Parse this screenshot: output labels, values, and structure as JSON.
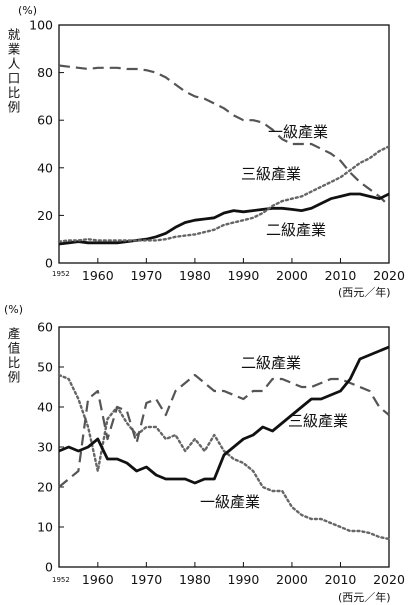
{
  "chart_data": [
    {
      "type": "line",
      "ylabel": "就業人口比例",
      "yunit": "(%)",
      "xunit": "(西元／年)",
      "x_start_label": "1952",
      "ylim": [
        0,
        100
      ],
      "xlim": [
        1952,
        2020
      ],
      "yticks": [
        0,
        20,
        40,
        60,
        80,
        100
      ],
      "xticks": [
        1960,
        1970,
        1980,
        1990,
        2000,
        2010,
        2020
      ],
      "grid": false,
      "series": [
        {
          "name": "一級產業",
          "line_style": "dashed",
          "x": [
            1952,
            1954,
            1956,
            1958,
            1960,
            1962,
            1964,
            1966,
            1968,
            1970,
            1972,
            1974,
            1976,
            1978,
            1980,
            1982,
            1984,
            1986,
            1988,
            1990,
            1992,
            1994,
            1996,
            1998,
            2000,
            2002,
            2004,
            2006,
            2008,
            2010,
            2012,
            2014,
            2016,
            2018,
            2020
          ],
          "y": [
            83,
            82.5,
            82,
            81.5,
            82,
            82,
            82,
            81.5,
            81.5,
            81,
            80,
            78,
            75,
            72,
            70,
            69,
            67,
            65,
            62,
            60,
            60,
            59,
            56,
            52,
            50,
            50,
            50,
            48,
            46,
            43,
            38,
            34,
            31,
            28,
            24
          ]
        },
        {
          "name": "二級產業",
          "line_style": "solid",
          "x": [
            1952,
            1954,
            1956,
            1958,
            1960,
            1962,
            1964,
            1966,
            1968,
            1970,
            1972,
            1974,
            1976,
            1978,
            1980,
            1982,
            1984,
            1986,
            1988,
            1990,
            1992,
            1994,
            1996,
            1998,
            2000,
            2002,
            2004,
            2006,
            2008,
            2010,
            2012,
            2014,
            2016,
            2018,
            2020
          ],
          "y": [
            8,
            8.5,
            9,
            8.5,
            8.5,
            8.5,
            8.5,
            9,
            9.5,
            10,
            11,
            12.5,
            15,
            17,
            18,
            18.5,
            19,
            21,
            22,
            21.5,
            22,
            22.5,
            23,
            23,
            22.5,
            22,
            23,
            25,
            27,
            28,
            29,
            29,
            28,
            27,
            29
          ]
        },
        {
          "name": "三級產業",
          "line_style": "dotted",
          "x": [
            1952,
            1954,
            1956,
            1958,
            1960,
            1962,
            1964,
            1966,
            1968,
            1970,
            1972,
            1974,
            1976,
            1978,
            1980,
            1982,
            1984,
            1986,
            1988,
            1990,
            1992,
            1994,
            1996,
            1998,
            2000,
            2002,
            2004,
            2006,
            2008,
            2010,
            2012,
            2014,
            2016,
            2018,
            2020
          ],
          "y": [
            9,
            9.5,
            9.5,
            10,
            9.5,
            9.5,
            9.5,
            9.5,
            9.5,
            9.5,
            9.5,
            10,
            11,
            11.5,
            12,
            13,
            14,
            16,
            17,
            18,
            19,
            21,
            24,
            26,
            27,
            28,
            30,
            32,
            34,
            36,
            39,
            42,
            44,
            47,
            49
          ]
        }
      ]
    },
    {
      "type": "line",
      "ylabel": "產值比例",
      "yunit": "(%)",
      "xunit": "(西元／年)",
      "x_start_label": "1952",
      "ylim": [
        0,
        60
      ],
      "xlim": [
        1952,
        2020
      ],
      "yticks": [
        0,
        10,
        20,
        30,
        40,
        50,
        60
      ],
      "xticks": [
        1960,
        1970,
        1980,
        1990,
        2000,
        2010,
        2020
      ],
      "grid": false,
      "series": [
        {
          "name": "一級產業",
          "line_style": "dotted",
          "x": [
            1952,
            1954,
            1956,
            1958,
            1960,
            1962,
            1964,
            1966,
            1968,
            1970,
            1972,
            1974,
            1976,
            1978,
            1980,
            1982,
            1984,
            1986,
            1988,
            1990,
            1992,
            1994,
            1996,
            1998,
            2000,
            2002,
            2004,
            2006,
            2008,
            2010,
            2012,
            2014,
            2016,
            2018,
            2020
          ],
          "y": [
            48,
            47,
            42,
            35,
            24,
            37,
            40,
            36,
            33,
            35,
            35,
            32,
            33,
            29,
            32,
            29,
            33,
            29,
            27,
            26,
            24,
            20,
            19,
            19,
            15,
            13,
            12,
            12,
            11,
            10,
            9,
            9,
            8.5,
            7.5,
            7
          ]
        },
        {
          "name": "二級產業",
          "line_style": "dashed",
          "x": [
            1952,
            1954,
            1956,
            1958,
            1960,
            1962,
            1964,
            1966,
            1968,
            1970,
            1972,
            1974,
            1976,
            1978,
            1980,
            1982,
            1984,
            1986,
            1988,
            1990,
            1992,
            1994,
            1996,
            1998,
            2000,
            2002,
            2004,
            2006,
            2008,
            2010,
            2012,
            2014,
            2016,
            2018,
            2020
          ],
          "y": [
            20,
            22,
            24,
            42,
            44,
            32,
            40,
            39,
            31,
            41,
            42,
            38,
            44,
            46,
            48,
            46,
            44,
            44,
            43,
            42,
            44,
            44,
            47,
            47,
            46,
            45,
            45,
            46,
            47,
            47,
            46,
            45,
            44,
            40,
            38
          ]
        },
        {
          "name": "三級產業",
          "line_style": "solid",
          "x": [
            1952,
            1954,
            1956,
            1958,
            1960,
            1962,
            1964,
            1966,
            1968,
            1970,
            1972,
            1974,
            1976,
            1978,
            1980,
            1982,
            1984,
            1986,
            1988,
            1990,
            1992,
            1994,
            1996,
            1998,
            2000,
            2002,
            2004,
            2006,
            2008,
            2010,
            2012,
            2014,
            2016,
            2018,
            2020
          ],
          "y": [
            29,
            30,
            29,
            30,
            32,
            27,
            27,
            26,
            24,
            25,
            23,
            22,
            22,
            22,
            21,
            22,
            22,
            28,
            30,
            32,
            33,
            35,
            34,
            36,
            38,
            40,
            42,
            42,
            43,
            44,
            47,
            52,
            53,
            54,
            55
          ]
        }
      ]
    }
  ]
}
